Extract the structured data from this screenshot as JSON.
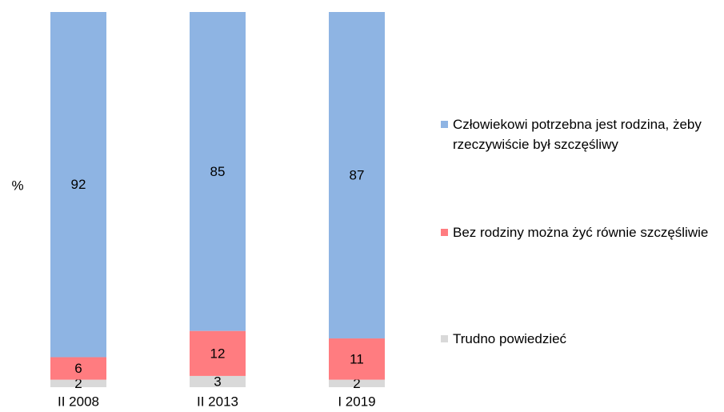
{
  "chart_data": {
    "type": "stacked_bar",
    "y_label": "%",
    "categories": [
      "II 2008",
      "II 2013",
      "I 2019"
    ],
    "ylim": [
      0,
      100
    ],
    "series": [
      {
        "name": "Trudno powiedzieć",
        "color": "#d9d9d9",
        "values": [
          2,
          3,
          2
        ]
      },
      {
        "name": "Bez rodziny można żyć równie szczęśliwie",
        "color": "#ff7c80",
        "values": [
          6,
          12,
          11
        ]
      },
      {
        "name": "Człowiekowi potrzebna jest rodzina, żeby rzeczywiście był szczęśliwy",
        "color": "#8eb4e3",
        "values": [
          92,
          85,
          87
        ]
      }
    ]
  }
}
